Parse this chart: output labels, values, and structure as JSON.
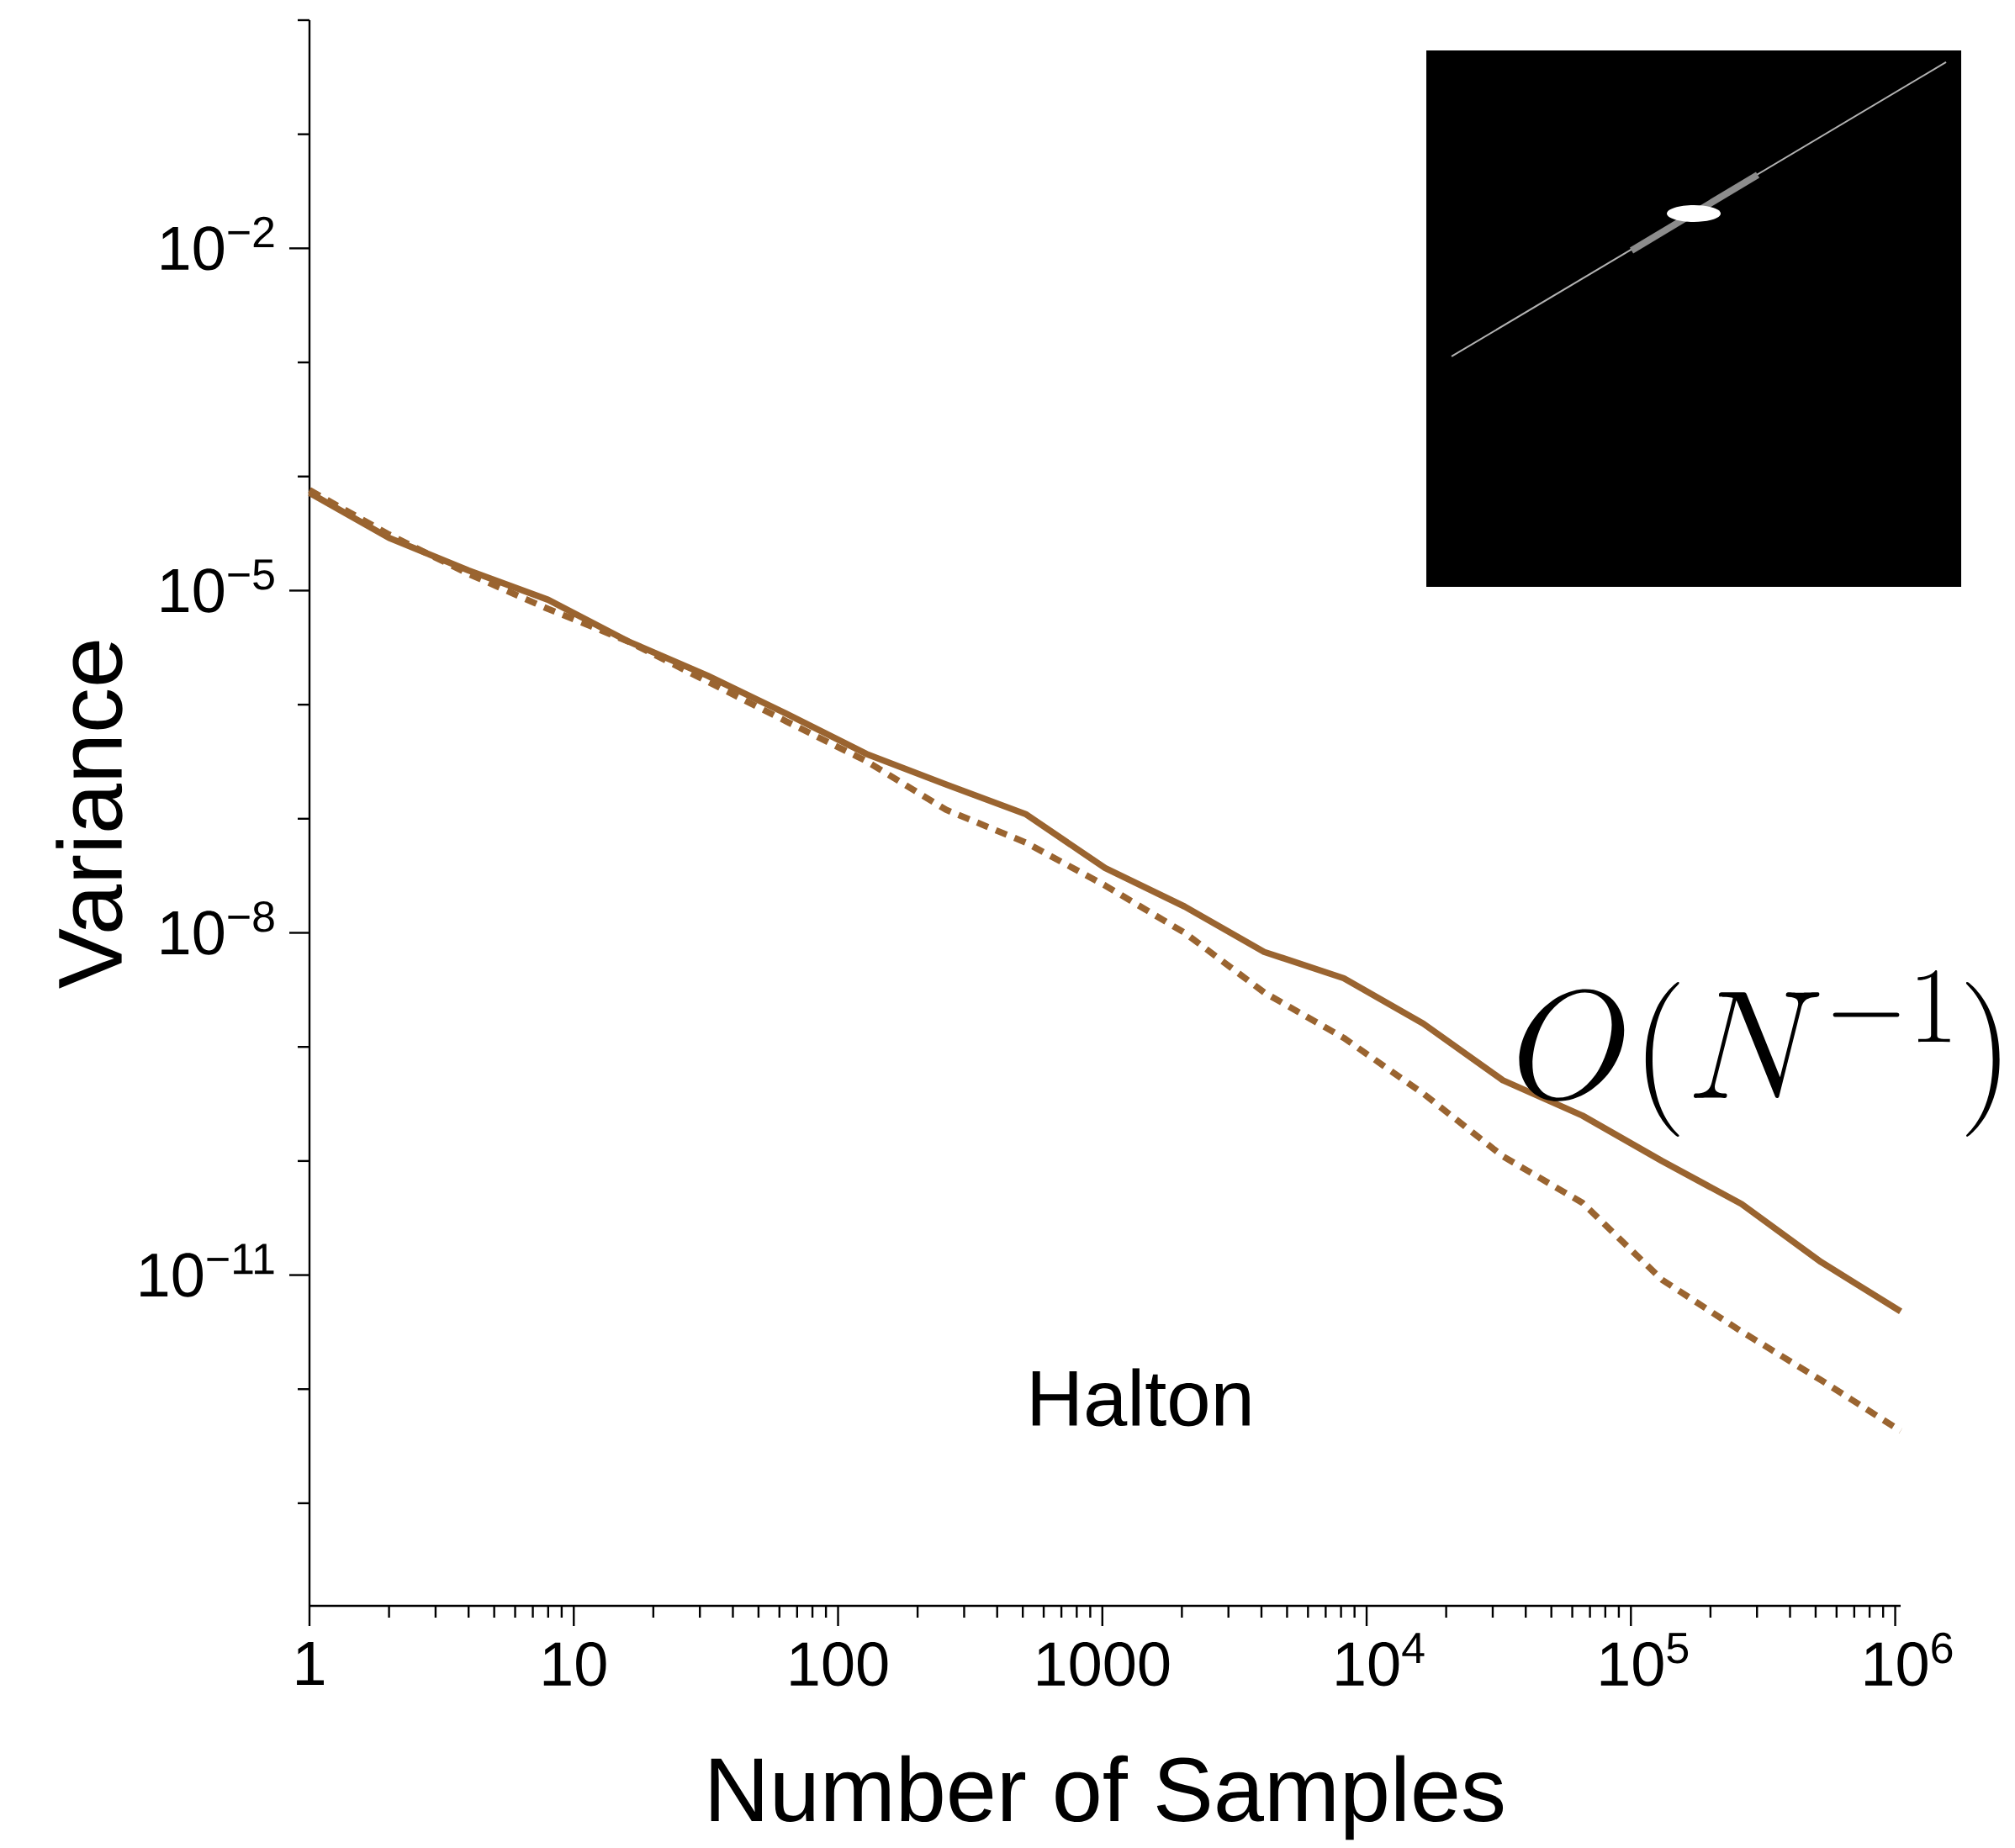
{
  "chart_data": {
    "type": "line",
    "xlabel": "Number of Samples",
    "ylabel": "Variance",
    "log": "xy",
    "xlim": [
      1,
      1048576
    ],
    "ylim": [
      1.26e-14,
      1
    ],
    "xticks": [
      1,
      {
        "value": 2,
        "label": null
      },
      {
        "value": 3,
        "label": null
      },
      {
        "value": 4,
        "label": null
      },
      {
        "value": 5,
        "label": null
      },
      {
        "value": 6,
        "label": null
      },
      {
        "value": 7,
        "label": null
      },
      {
        "value": 8,
        "label": null
      },
      {
        "value": 9,
        "label": null
      },
      10,
      {
        "value": 20,
        "label": null
      },
      {
        "value": 30,
        "label": null
      },
      {
        "value": 40,
        "label": null
      },
      {
        "value": 50,
        "label": null
      },
      {
        "value": 60,
        "label": null
      },
      {
        "value": 70,
        "label": null
      },
      {
        "value": 80,
        "label": null
      },
      {
        "value": 90,
        "label": null
      },
      100,
      {
        "value": 200,
        "label": null
      },
      {
        "value": 300,
        "label": null
      },
      {
        "value": 400,
        "label": null
      },
      {
        "value": 500,
        "label": null
      },
      {
        "value": 600,
        "label": null
      },
      {
        "value": 700,
        "label": null
      },
      {
        "value": 800,
        "label": null
      },
      {
        "value": 900,
        "label": null
      },
      1000,
      {
        "value": 2000,
        "label": null
      },
      {
        "value": 3000,
        "label": null
      },
      {
        "value": 4000,
        "label": null
      },
      {
        "value": 5000,
        "label": null
      },
      {
        "value": 6000,
        "label": null
      },
      {
        "value": 7000,
        "label": null
      },
      {
        "value": 8000,
        "label": null
      },
      {
        "value": 9000,
        "label": null
      },
      {
        "value": 10000,
        "label": "10$^{4}$"
      },
      {
        "value": 20000,
        "label": null
      },
      {
        "value": 30000,
        "label": null
      },
      {
        "value": 40000,
        "label": null
      },
      {
        "value": 50000,
        "label": null
      },
      {
        "value": 60000,
        "label": null
      },
      {
        "value": 70000,
        "label": null
      },
      {
        "value": 80000,
        "label": null
      },
      {
        "value": 90000,
        "label": null
      },
      {
        "value": 100000,
        "label": "10$^{5}$"
      },
      {
        "value": 200000,
        "label": null
      },
      {
        "value": 300000,
        "label": null
      },
      {
        "value": 400000,
        "label": null
      },
      {
        "value": 500000,
        "label": null
      },
      {
        "value": 600000,
        "label": null
      },
      {
        "value": 700000,
        "label": null
      },
      {
        "value": 800000,
        "label": null
      },
      {
        "value": 900000,
        "label": null
      },
      {
        "value": 1000000,
        "label": "10$^{6}$"
      }
    ],
    "yticks": [
      {
        "value": 1e-13,
        "label": null
      },
      {
        "value": 1e-12,
        "label": null
      },
      {
        "value": 1e-11,
        "label": "10$^{−11}$"
      },
      {
        "value": 1e-10,
        "label": null
      },
      {
        "value": 1e-09,
        "label": null
      },
      {
        "value": 1e-08,
        "label": "10$^{−8}$"
      },
      {
        "value": 1e-07,
        "label": null
      },
      {
        "value": 1e-06,
        "label": null
      },
      {
        "value": 1e-05,
        "label": "10$^{−5}$"
      },
      {
        "value": 0.0001,
        "label": null
      },
      {
        "value": 0.001,
        "label": null
      },
      {
        "value": 0.01,
        "label": "10$^{−2}$"
      },
      {
        "value": 0.1,
        "label": null
      },
      {
        "value": 1,
        "label": null
      }
    ],
    "x": [
      1,
      2,
      4,
      8,
      16,
      32,
      64,
      128,
      256,
      512,
      1024,
      2048,
      4096,
      8192,
      16384,
      32768,
      65536,
      131072,
      262144,
      524288,
      1048576
    ],
    "series": [
      {
        "color": "#9a6430",
        "line_style": "solid",
        "values": [
          7.2e-05,
          2.9e-05,
          1.5e-05,
          8.3e-06,
          3.6e-06,
          1.8e-06,
          8.3e-07,
          3.7e-07,
          2e-07,
          1.1e-07,
          3.7e-08,
          1.7e-08,
          6.8e-09,
          4e-09,
          1.6e-09,
          5.1e-10,
          2.5e-10,
          1e-10,
          4.2e-11,
          1.3e-11,
          4.8e-12
        ]
      },
      {
        "color": "#9a6430",
        "line_style": "dashed",
        "values": [
          7.6e-05,
          3.1e-05,
          1.4e-05,
          6.9e-06,
          3.6e-06,
          1.6e-06,
          7.1e-07,
          3.2e-07,
          1.2e-07,
          6.2e-08,
          2.6e-08,
          1e-08,
          3e-09,
          1.2e-09,
          3.9e-10,
          1.1e-10,
          4.3e-11,
          9.1e-12,
          3.2e-12,
          1.2e-12,
          4.3e-13
        ]
      }
    ],
    "annotations": [
      "O(N^{-1})",
      "Halton"
    ]
  }
}
